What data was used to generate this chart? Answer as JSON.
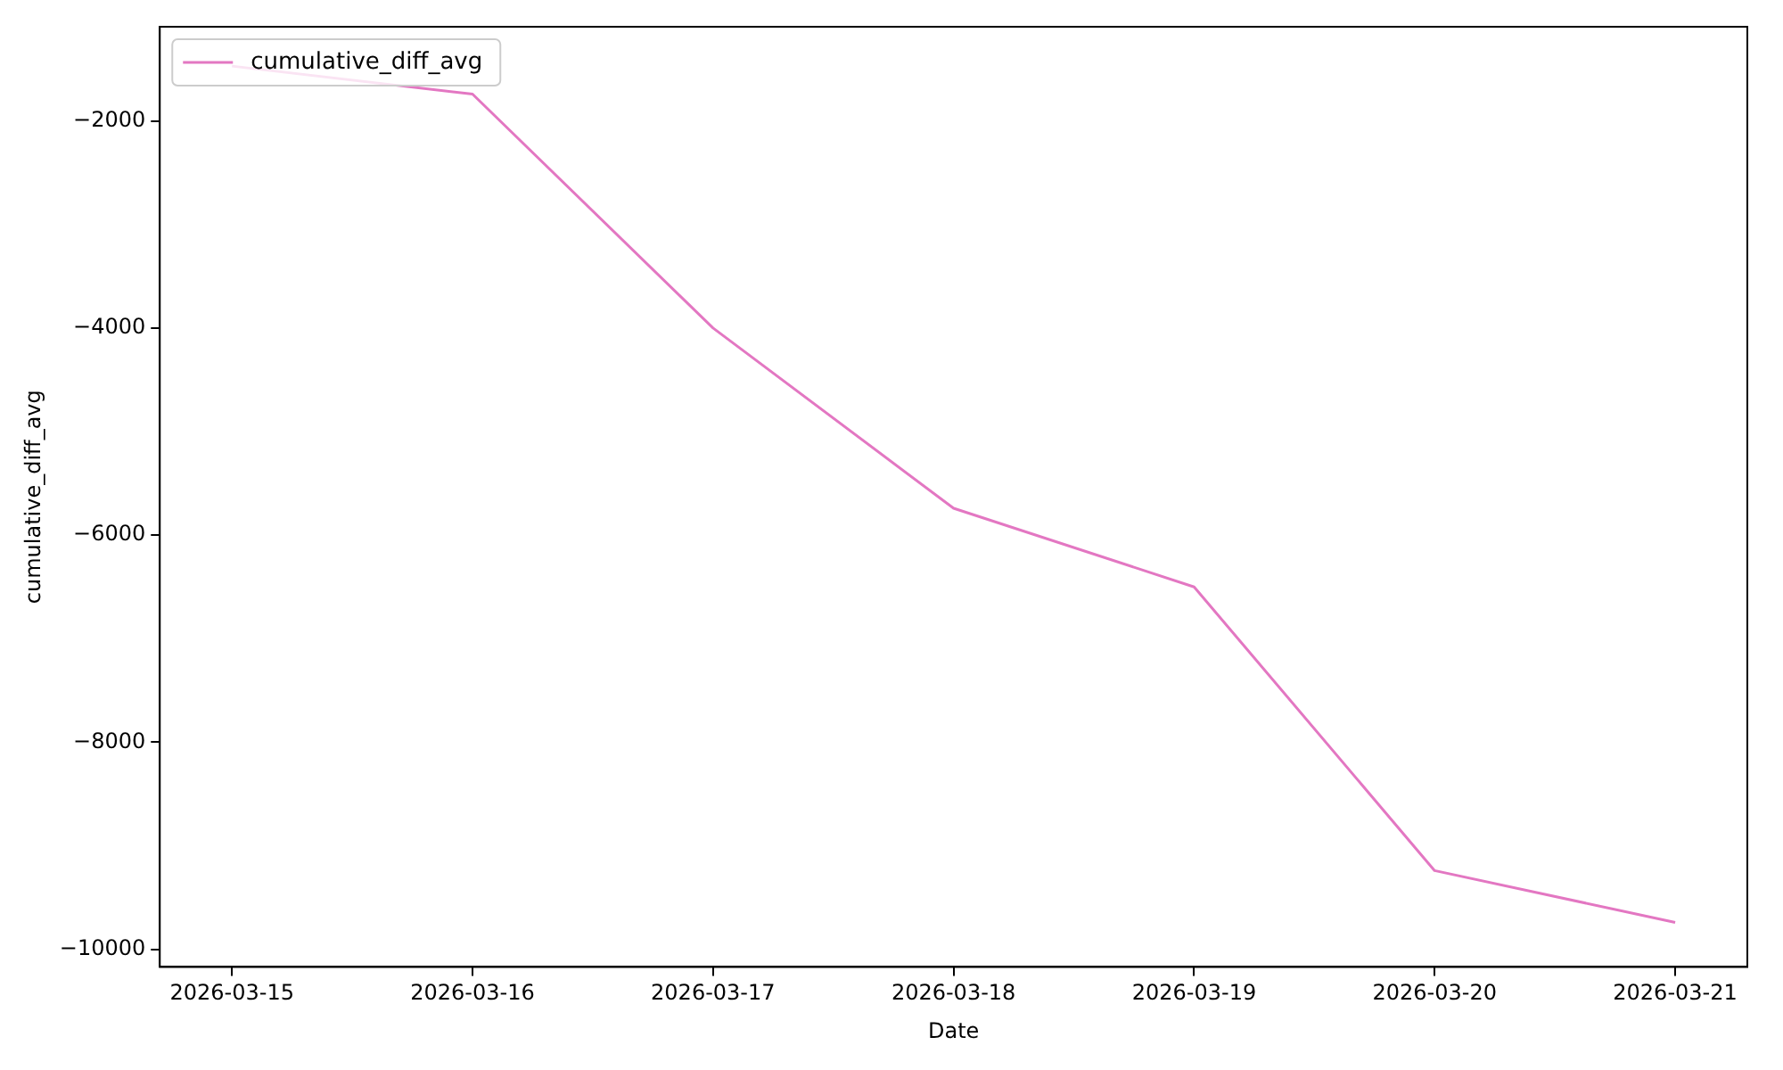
{
  "chart_data": {
    "type": "line",
    "xlabel": "Date",
    "ylabel": "cumulative_diff_avg",
    "x": [
      "2026-03-15",
      "2026-03-16",
      "2026-03-17",
      "2026-03-18",
      "2026-03-19",
      "2026-03-20",
      "2026-03-21"
    ],
    "series": [
      {
        "name": "cumulative_diff_avg",
        "color": "#e377c2",
        "values": [
          -1470,
          -1740,
          -4000,
          -5740,
          -6500,
          -9240,
          -9740
        ]
      }
    ],
    "xlim": [
      "2026-03-14T16:48",
      "2026-03-21T07:12"
    ],
    "xticks": [
      "2026-03-15",
      "2026-03-16",
      "2026-03-17",
      "2026-03-18",
      "2026-03-19",
      "2026-03-20",
      "2026-03-21"
    ],
    "ylim": [
      -10170,
      -1090
    ],
    "yticks": [
      -10000,
      -8000,
      -6000,
      -4000,
      -2000
    ],
    "grid": false,
    "legend": "top left",
    "marker": "none",
    "line_style": "solid"
  }
}
